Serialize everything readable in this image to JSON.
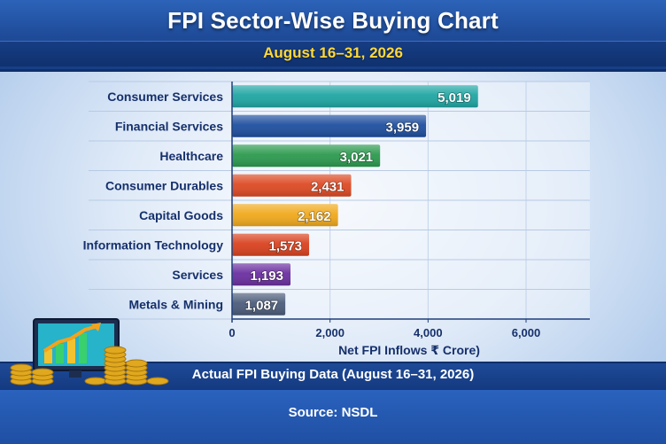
{
  "header": {
    "title": "FPI Sector-Wise Buying Chart",
    "subtitle": "August 16–31, 2026"
  },
  "chart_data": {
    "type": "bar",
    "orientation": "horizontal",
    "title": "FPI Sector-Wise Buying Chart",
    "subtitle": "August 16–31, 2026",
    "xlabel": "Net FPI Inflows ₹ Crore)",
    "ylabel": "",
    "categories": [
      "Consumer Services",
      "Financial Services",
      "Healthcare",
      "Consumer Durables",
      "Capital Goods",
      "Information Technology",
      "Services",
      "Metals & Mining"
    ],
    "values": [
      5019,
      3959,
      3021,
      2431,
      2162,
      1573,
      1193,
      1087
    ],
    "value_labels": [
      "5,019",
      "3,959",
      "3,021",
      "2,431",
      "2,162",
      "1,573",
      "1,193",
      "1,087"
    ],
    "xlim": [
      0,
      6000
    ],
    "xticks": [
      0,
      2000,
      4000,
      6000
    ],
    "xtick_labels": [
      "0",
      "2,000",
      "4,000",
      "6,000"
    ],
    "grid": true,
    "legend": "none",
    "colors": [
      "#1fa6a3",
      "#1f4f9e",
      "#2c9a4f",
      "#dd4a24",
      "#f0a91c",
      "#d9421f",
      "#6b2fa0",
      "#4c5c7a"
    ]
  },
  "footer": {
    "banner_text": "Actual FPI Buying Data (August 16–31, 2026)",
    "source": "Source: NSDL"
  },
  "decoration": {
    "icon": "rising-chart-monitor-with-gold-coins-icon"
  }
}
